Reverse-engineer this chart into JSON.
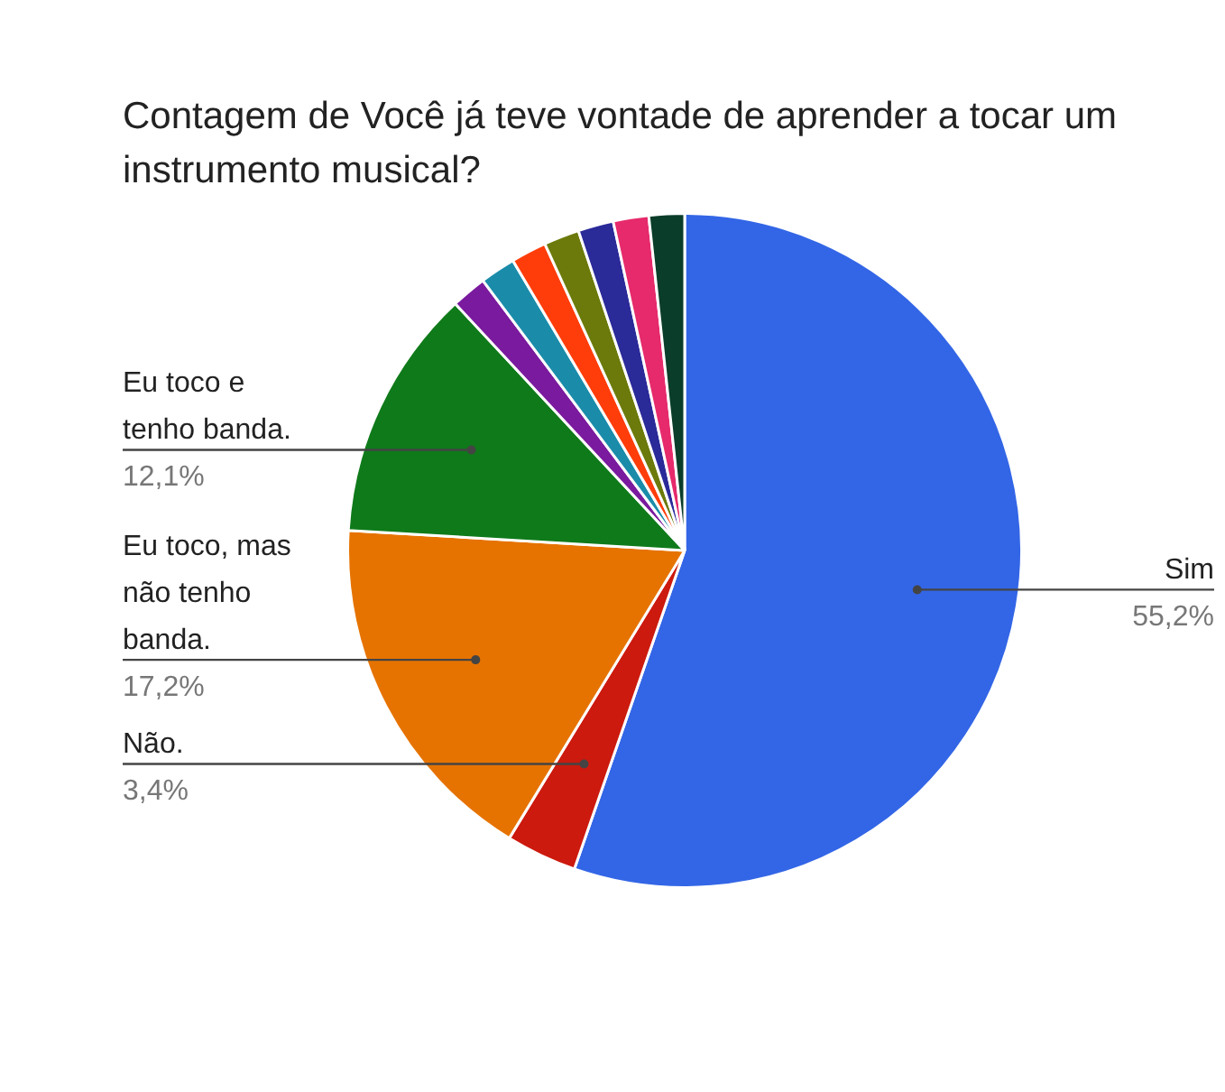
{
  "chart_data": {
    "type": "pie",
    "title": "Contagem de Você já teve vontade de aprender a tocar um instrumento musical?",
    "categories": [
      "Sim",
      "Não.",
      "Eu toco, mas não tenho banda.",
      "Eu toco e tenho banda.",
      null,
      null,
      null,
      null,
      null,
      null,
      null
    ],
    "values": [
      55.2,
      3.4,
      17.2,
      12.1,
      1.7,
      1.7,
      1.7,
      1.7,
      1.7,
      1.7,
      1.7
    ],
    "value_labels": [
      "55,2%",
      "3,4%",
      "17,2%",
      "12,1%",
      null,
      null,
      null,
      null,
      null,
      null,
      null
    ],
    "colors": [
      "#3366e6",
      "#cc1a0e",
      "#e67300",
      "#0f7a1a",
      "#7a1a9e",
      "#1a8caa",
      "#ff3d0a",
      "#6b7a0a",
      "#2a2a99",
      "#e62a6b",
      "#0a3d2a"
    ],
    "legend": false
  }
}
